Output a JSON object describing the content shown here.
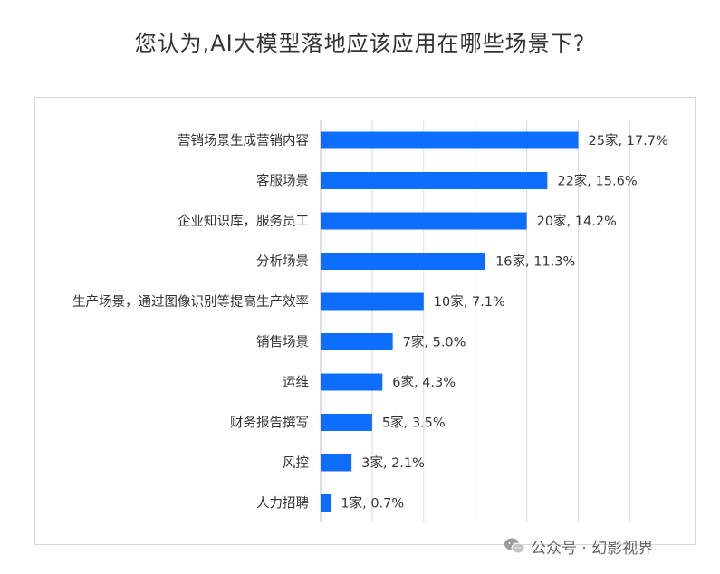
{
  "chart_data": {
    "type": "bar",
    "orientation": "horizontal",
    "title": "您认为,AI大模型落地应该应用在哪些场景下?",
    "categories": [
      "营销场景生成营销内容",
      "客服场景",
      "企业知识库，服务员工",
      "分析场景",
      "生产场景，通过图像识别等提高生产效率",
      "销售场景",
      "运维",
      "财务报告撰写",
      "风控",
      "人力招聘"
    ],
    "series": [
      {
        "values": [
          25,
          22,
          20,
          16,
          10,
          7,
          6,
          5,
          3,
          1
        ]
      }
    ],
    "data_labels": [
      "25家, 17.7%",
      "22家, 15.6%",
      "20家, 14.2%",
      "16家, 11.3%",
      "10家, 7.1%",
      "7家, 5.0%",
      "6家, 4.3%",
      "5家, 3.5%",
      "3家, 2.1%",
      "1家, 0.7%"
    ],
    "xlim": [
      0,
      30
    ],
    "grid": true,
    "legend": "none",
    "bar_color": "#0d6efd",
    "grid_color": "#d9d9d9",
    "label_color": "#333333"
  },
  "watermark": {
    "text": "公众号 · 幻影视界",
    "icon": "wechat-icon"
  }
}
